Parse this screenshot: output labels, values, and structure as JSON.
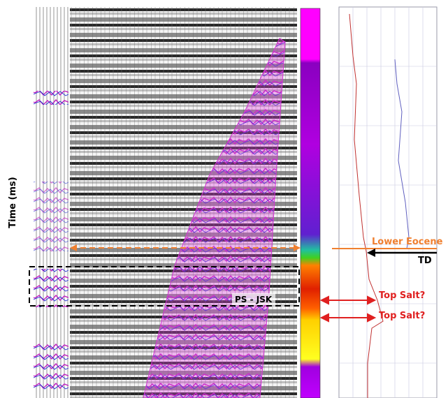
{
  "labels": {
    "y_axis": "Time (ms)",
    "lower_eocene": "Lower Eocene",
    "td": "TD",
    "top_salt_1": "Top Salt?",
    "top_salt_2": "Top Salt?",
    "ps_jsk": "PS - JSK"
  }
}
